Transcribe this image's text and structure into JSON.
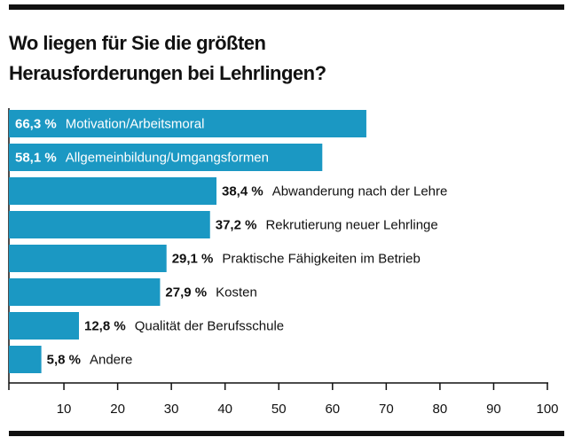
{
  "chart_data": {
    "type": "bar",
    "orientation": "horizontal",
    "title": "Wo liegen für Sie die größten Herausforderungen bei Lehrlingen?",
    "categories": [
      "Motivation/Arbeitsmoral",
      "Allgemeinbildung/Umgangsformen",
      "Abwanderung nach der Lehre",
      "Rekrutierung neuer Lehrlinge",
      "Praktische Fähigkeiten im Betrieb",
      "Kosten",
      "Qualität der Berufsschule",
      "Andere"
    ],
    "values": [
      66.3,
      58.1,
      38.4,
      37.2,
      29.1,
      27.9,
      12.8,
      5.8
    ],
    "value_labels": [
      "66,3 %",
      "58,1 %",
      "38,4 %",
      "37,2 %",
      "29,1 %",
      "27,9 %",
      "12,8 %",
      "5,8 %"
    ],
    "color": "#1b98c3",
    "xlim": [
      0,
      100
    ],
    "xticks": [
      10,
      20,
      30,
      40,
      50,
      60,
      70,
      80,
      90,
      100
    ],
    "grid": false
  }
}
